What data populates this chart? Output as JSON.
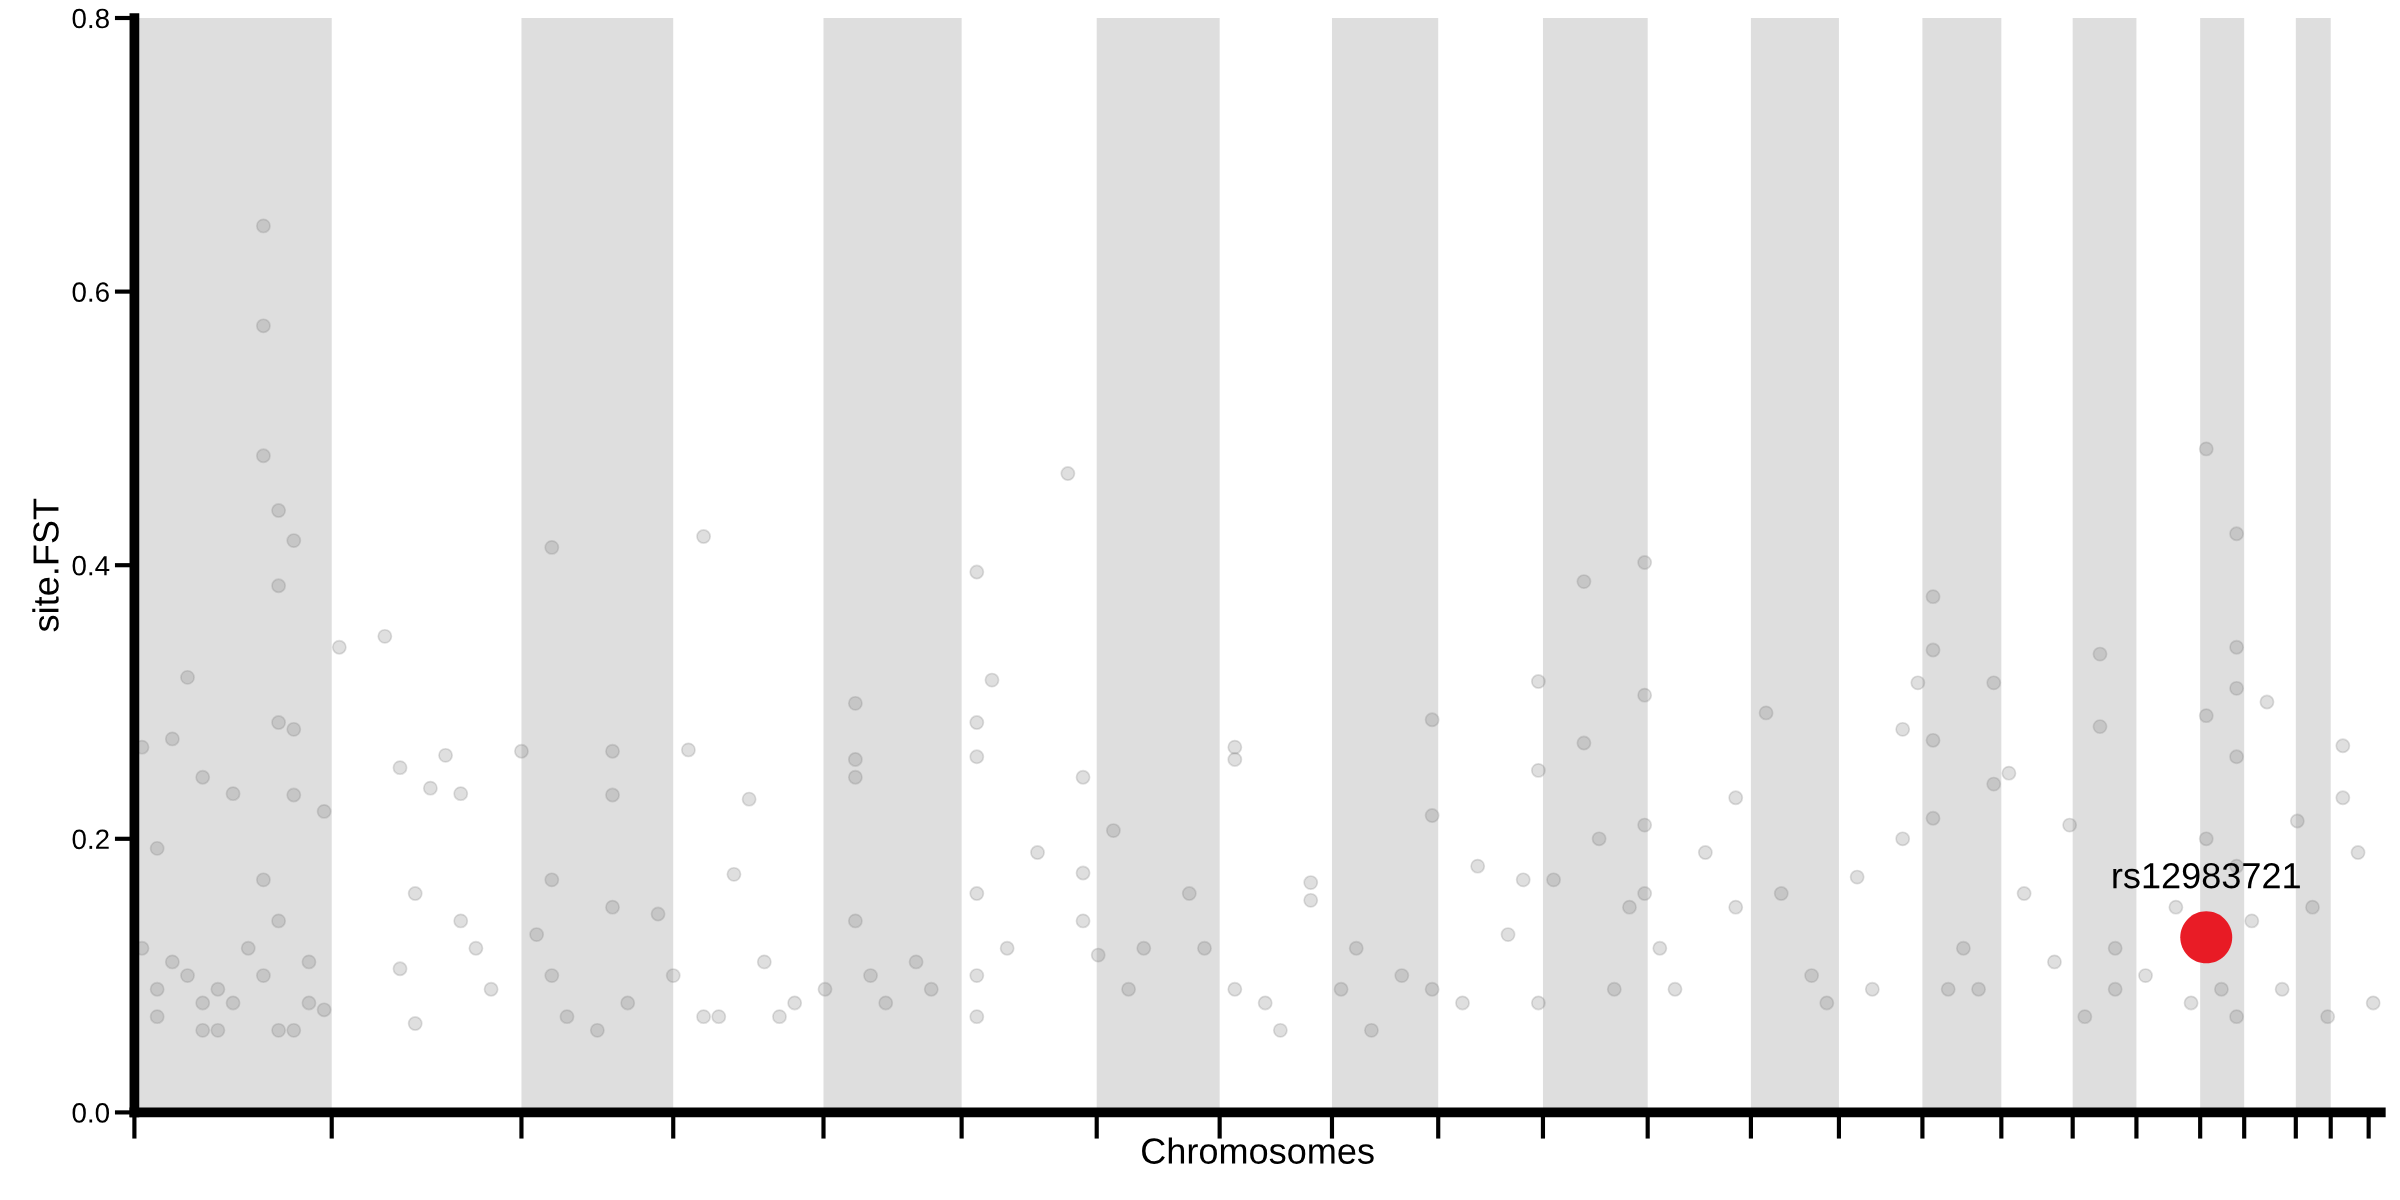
{
  "chart_data": {
    "type": "scatter",
    "xlabel": "Chromosomes",
    "ylabel": "site.FST",
    "categories": [
      null,
      null,
      null,
      null,
      null,
      null,
      null,
      null,
      null,
      null,
      null,
      null,
      null,
      null,
      null,
      null,
      null,
      null,
      null,
      null,
      null,
      null,
      null,
      null,
      null,
      null,
      null,
      null,
      null,
      null,
      null,
      null,
      null,
      null,
      null,
      null,
      null,
      null,
      null,
      null,
      null,
      null,
      null,
      null,
      null,
      null,
      null,
      null,
      null,
      null,
      null,
      null,
      null,
      null,
      null,
      null,
      null,
      null,
      null,
      null,
      null,
      null,
      null,
      null,
      null,
      null,
      null,
      null,
      null,
      null,
      null,
      null,
      null,
      null,
      null,
      null,
      null,
      null,
      null,
      null,
      null,
      null,
      null,
      null,
      null,
      null,
      null,
      null,
      null,
      null,
      null,
      null,
      null,
      null,
      null,
      null,
      null,
      null,
      null,
      null,
      null,
      null,
      null,
      null,
      null,
      null,
      null,
      null,
      null,
      null,
      null,
      null,
      null,
      null,
      null,
      null,
      null,
      null,
      null,
      null,
      null,
      null,
      null,
      null,
      null,
      null,
      null,
      null,
      null,
      null,
      null,
      null,
      null,
      null,
      null,
      null,
      null,
      null,
      null,
      null,
      null,
      null,
      null,
      null,
      null,
      null,
      null,
      null
    ],
    "ylim": [
      0,
      0.8
    ],
    "yticks": [
      {
        "value": 0,
        "label": "0.0"
      },
      {
        "value": 0.2,
        "label": "0.2"
      },
      {
        "value": 0.4,
        "label": "0.4"
      },
      {
        "value": 0.6,
        "label": "0.6"
      },
      {
        "value": 0.8,
        "label": "0.8"
      }
    ],
    "tick_labels": "y",
    "grid": false,
    "marker": "circle",
    "annotations": [
      {
        "text": "rs12983721",
        "y": 0.128
      }
    ],
    "series": [
      {
        "color": "#808080",
        "values": [
          0.267,
          0.07,
          0.273,
          0.1,
          0.06,
          0.09,
          0.233,
          0.12,
          0.648,
          0.44,
          0.28,
          0.11,
          0.22,
          0.34,
          null,
          null,
          0.348,
          0.105,
          0.16,
          0.237,
          0.261,
          0.233,
          0.12,
          0.09,
          null,
          0.264,
          0.13,
          0.17,
          0.07,
          null,
          0.06,
          0.264,
          0.08,
          null,
          0.145,
          0.1,
          0.265,
          0.07,
          0.07,
          0.174,
          0.229,
          0.11,
          0.07,
          0.08,
          null,
          0.09,
          null,
          0.14,
          0.1,
          0.08,
          null,
          0.11,
          0.09,
          null,
          null,
          0.395,
          0.316,
          0.12,
          null,
          0.19,
          null,
          0.467,
          0.245,
          0.115,
          0.206,
          0.09,
          0.12,
          null,
          null,
          0.16,
          0.12,
          null,
          0.09,
          null,
          0.08,
          0.06,
          null,
          0.168,
          null,
          0.09,
          0.12,
          0.06,
          null,
          0.1,
          null,
          0.09,
          null,
          0.08,
          0.18,
          null,
          0.13,
          0.17,
          0.315,
          0.17,
          null,
          0.27,
          0.2,
          0.09,
          0.15,
          0.16,
          0.12,
          0.09,
          null,
          0.19,
          null,
          0.23,
          null,
          0.292,
          0.16,
          null,
          0.1,
          0.08,
          null,
          0.172,
          0.09,
          null,
          0.2,
          0.314,
          0.377,
          0.09,
          0.12,
          0.09,
          0.24,
          0.248,
          0.16,
          null,
          0.11,
          0.21,
          0.07,
          0.335,
          0.12,
          null,
          0.1,
          null,
          0.15,
          0.08,
          0.485,
          0.09,
          0.423,
          0.14,
          0.3,
          0.09,
          0.213,
          0.15,
          0.07,
          0.268,
          0.19,
          0.08
        ]
      },
      {
        "color": "#808080",
        "values": [
          0.12,
          0.09,
          0.11,
          0.318,
          0.08,
          0.06,
          0.08,
          null,
          0.48,
          0.385,
          0.418,
          0.08,
          0.075,
          null,
          null,
          null,
          null,
          0.252,
          0.065,
          null,
          null,
          0.14,
          null,
          null,
          null,
          null,
          null,
          0.1,
          null,
          null,
          null,
          0.232,
          null,
          null,
          null,
          null,
          null,
          0.421,
          null,
          null,
          null,
          null,
          null,
          null,
          null,
          null,
          null,
          0.258,
          null,
          null,
          null,
          null,
          null,
          null,
          null,
          0.285,
          null,
          null,
          null,
          null,
          null,
          null,
          0.14,
          null,
          null,
          null,
          null,
          null,
          null,
          null,
          null,
          null,
          0.267,
          null,
          null,
          null,
          null,
          0.155,
          null,
          null,
          null,
          null,
          null,
          null,
          null,
          0.287,
          null,
          null,
          null,
          null,
          null,
          null,
          0.25,
          null,
          null,
          0.388,
          null,
          null,
          null,
          0.402,
          null,
          null,
          null,
          null,
          null,
          0.15,
          null,
          null,
          null,
          null,
          null,
          null,
          null,
          null,
          null,
          null,
          0.28,
          null,
          0.338,
          null,
          null,
          null,
          0.314,
          null,
          null,
          null,
          null,
          null,
          null,
          0.282,
          0.09,
          null,
          null,
          null,
          null,
          null,
          0.29,
          null,
          0.34,
          null,
          null,
          null,
          null,
          null,
          null,
          0.23,
          null,
          null
        ]
      },
      {
        "color": "#808080",
        "values": [
          null,
          0.193,
          null,
          null,
          0.245,
          null,
          null,
          null,
          0.575,
          0.285,
          0.06,
          null,
          null,
          null,
          null,
          null,
          null,
          null,
          null,
          null,
          null,
          null,
          null,
          null,
          null,
          null,
          null,
          0.413,
          null,
          null,
          null,
          0.15,
          null,
          null,
          null,
          null,
          null,
          null,
          null,
          null,
          null,
          null,
          null,
          null,
          null,
          null,
          null,
          0.299,
          null,
          null,
          null,
          null,
          null,
          null,
          null,
          0.26,
          null,
          null,
          null,
          null,
          null,
          null,
          0.175,
          null,
          null,
          null,
          null,
          null,
          null,
          null,
          null,
          null,
          0.258,
          null,
          null,
          null,
          null,
          null,
          null,
          null,
          null,
          null,
          null,
          null,
          null,
          0.217,
          null,
          null,
          null,
          null,
          null,
          null,
          0.08,
          null,
          null,
          null,
          null,
          null,
          null,
          0.305,
          null,
          null,
          null,
          null,
          null,
          null,
          null,
          null,
          null,
          null,
          null,
          null,
          null,
          null,
          null,
          null,
          null,
          null,
          0.272,
          null,
          null,
          null,
          null,
          null,
          null,
          null,
          null,
          null,
          null,
          null,
          null,
          null,
          null,
          null,
          null,
          null,
          0.2,
          null,
          0.31,
          null,
          null,
          null,
          null,
          null,
          null,
          null,
          null,
          null
        ]
      },
      {
        "color": "#808080",
        "values": [
          null,
          null,
          null,
          null,
          null,
          null,
          null,
          null,
          0.17,
          0.06,
          0.232,
          null,
          null,
          null,
          null,
          null,
          null,
          null,
          null,
          null,
          null,
          null,
          null,
          null,
          null,
          null,
          null,
          null,
          null,
          null,
          null,
          null,
          null,
          null,
          null,
          null,
          null,
          null,
          null,
          null,
          null,
          null,
          null,
          null,
          null,
          null,
          null,
          0.245,
          null,
          null,
          null,
          null,
          null,
          null,
          null,
          0.16,
          null,
          null,
          null,
          null,
          null,
          null,
          null,
          null,
          null,
          null,
          null,
          null,
          null,
          null,
          null,
          null,
          null,
          null,
          null,
          null,
          null,
          null,
          null,
          null,
          null,
          null,
          null,
          null,
          null,
          null,
          null,
          null,
          null,
          null,
          null,
          null,
          null,
          null,
          null,
          null,
          null,
          null,
          null,
          0.21,
          null,
          null,
          null,
          null,
          null,
          null,
          null,
          null,
          null,
          null,
          null,
          null,
          null,
          null,
          null,
          null,
          null,
          null,
          0.215,
          null,
          null,
          null,
          null,
          null,
          null,
          null,
          null,
          null,
          null,
          null,
          null,
          null,
          null,
          null,
          null,
          null,
          null,
          null,
          0.26,
          null,
          null,
          null,
          null,
          null,
          null,
          null,
          null,
          null
        ]
      },
      {
        "color": "#808080",
        "values": [
          null,
          null,
          null,
          null,
          null,
          null,
          null,
          null,
          0.1,
          0.14,
          null,
          null,
          null,
          null,
          null,
          null,
          null,
          null,
          null,
          null,
          null,
          null,
          null,
          null,
          null,
          null,
          null,
          null,
          null,
          null,
          null,
          null,
          null,
          null,
          null,
          null,
          null,
          null,
          null,
          null,
          null,
          null,
          null,
          null,
          null,
          null,
          null,
          null,
          null,
          null,
          null,
          null,
          null,
          null,
          null,
          0.1,
          null,
          null,
          null,
          null,
          null,
          null,
          null,
          null,
          null,
          null,
          null,
          null,
          null,
          null,
          null,
          null,
          null,
          null,
          null,
          null,
          null,
          null,
          null,
          null,
          null,
          null,
          null,
          null,
          null,
          null,
          null,
          null,
          null,
          null,
          null,
          null,
          null,
          null,
          null,
          null,
          null,
          null,
          null,
          null,
          null,
          null,
          null,
          null,
          null,
          null,
          null,
          null,
          null,
          null,
          null,
          null,
          null,
          null,
          null,
          null,
          null,
          null,
          null,
          null,
          null,
          null,
          null,
          null,
          null,
          null,
          null,
          null,
          null,
          null,
          null,
          null,
          null,
          null,
          null,
          null,
          null,
          null,
          0.18,
          null,
          null,
          null,
          null,
          null,
          null,
          null,
          null,
          null
        ]
      },
      {
        "color": "#808080",
        "values": [
          null,
          null,
          null,
          null,
          null,
          null,
          null,
          null,
          null,
          null,
          null,
          null,
          null,
          null,
          null,
          null,
          null,
          null,
          null,
          null,
          null,
          null,
          null,
          null,
          null,
          null,
          null,
          null,
          null,
          null,
          null,
          null,
          null,
          null,
          null,
          null,
          null,
          null,
          null,
          null,
          null,
          null,
          null,
          null,
          null,
          null,
          null,
          null,
          null,
          null,
          null,
          null,
          null,
          null,
          null,
          0.07,
          null,
          null,
          null,
          null,
          null,
          null,
          null,
          null,
          null,
          null,
          null,
          null,
          null,
          null,
          null,
          null,
          null,
          null,
          null,
          null,
          null,
          null,
          null,
          null,
          null,
          null,
          null,
          null,
          null,
          null,
          null,
          null,
          null,
          null,
          null,
          null,
          null,
          null,
          null,
          null,
          null,
          null,
          null,
          null,
          null,
          null,
          null,
          null,
          null,
          null,
          null,
          null,
          null,
          null,
          null,
          null,
          null,
          null,
          null,
          null,
          null,
          null,
          null,
          null,
          null,
          null,
          null,
          null,
          null,
          null,
          null,
          null,
          null,
          null,
          null,
          null,
          null,
          null,
          null,
          null,
          null,
          null,
          0.07,
          null,
          null,
          null,
          null,
          null,
          null,
          null,
          null,
          null
        ]
      },
      {
        "color": "#e8101a",
        "values": [
          null,
          null,
          null,
          null,
          null,
          null,
          null,
          null,
          null,
          null,
          null,
          null,
          null,
          null,
          null,
          null,
          null,
          null,
          null,
          null,
          null,
          null,
          null,
          null,
          null,
          null,
          null,
          null,
          null,
          null,
          null,
          null,
          null,
          null,
          null,
          null,
          null,
          null,
          null,
          null,
          null,
          null,
          null,
          null,
          null,
          null,
          null,
          null,
          null,
          null,
          null,
          null,
          null,
          null,
          null,
          null,
          null,
          null,
          null,
          null,
          null,
          null,
          null,
          null,
          null,
          null,
          null,
          null,
          null,
          null,
          null,
          null,
          null,
          null,
          null,
          null,
          null,
          null,
          null,
          null,
          null,
          null,
          null,
          null,
          null,
          null,
          null,
          null,
          null,
          null,
          null,
          null,
          null,
          null,
          null,
          null,
          null,
          null,
          null,
          null,
          null,
          null,
          null,
          null,
          null,
          null,
          null,
          null,
          null,
          null,
          null,
          null,
          null,
          null,
          null,
          null,
          null,
          null,
          null,
          null,
          null,
          null,
          null,
          null,
          null,
          null,
          null,
          null,
          null,
          null,
          null,
          null,
          null,
          null,
          null,
          null,
          0.128,
          null,
          null,
          null,
          null,
          null,
          null,
          null,
          null,
          null,
          null,
          null
        ]
      }
    ]
  }
}
